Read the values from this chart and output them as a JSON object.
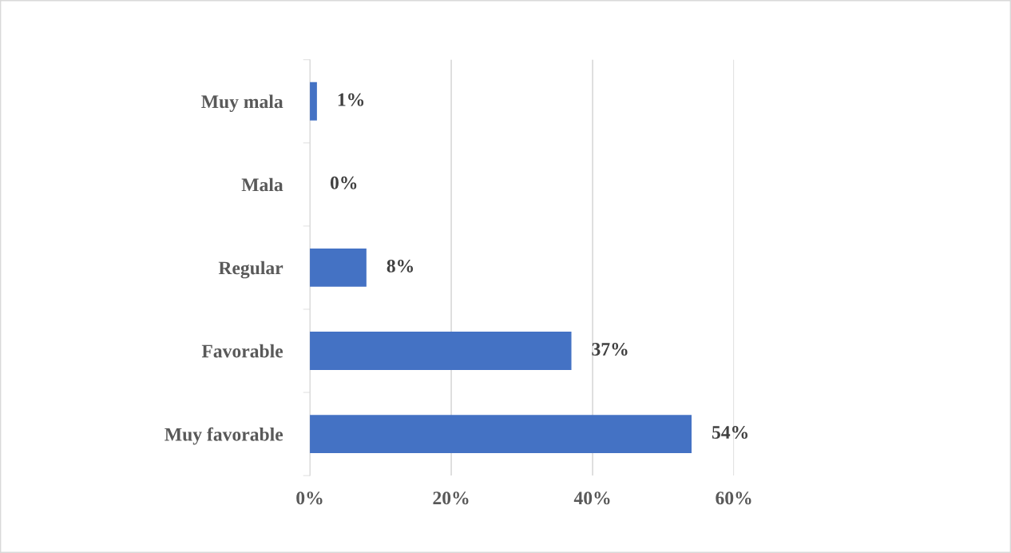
{
  "chart_data": {
    "type": "bar",
    "orientation": "horizontal",
    "categories": [
      "Muy mala",
      "Mala",
      "Regular",
      "Favorable",
      "Muy favorable"
    ],
    "values": [
      1,
      0,
      8,
      37,
      54
    ],
    "value_labels": [
      "1%",
      "0%",
      "8%",
      "37%",
      "54%"
    ],
    "color": "#4472c4",
    "xlim": [
      0,
      60
    ],
    "xticks": [
      {
        "value": 0,
        "label": "0%"
      },
      {
        "value": 20,
        "label": "20%"
      },
      {
        "value": 40,
        "label": "40%"
      },
      {
        "value": 60,
        "label": "60%"
      }
    ],
    "grid": "x"
  }
}
